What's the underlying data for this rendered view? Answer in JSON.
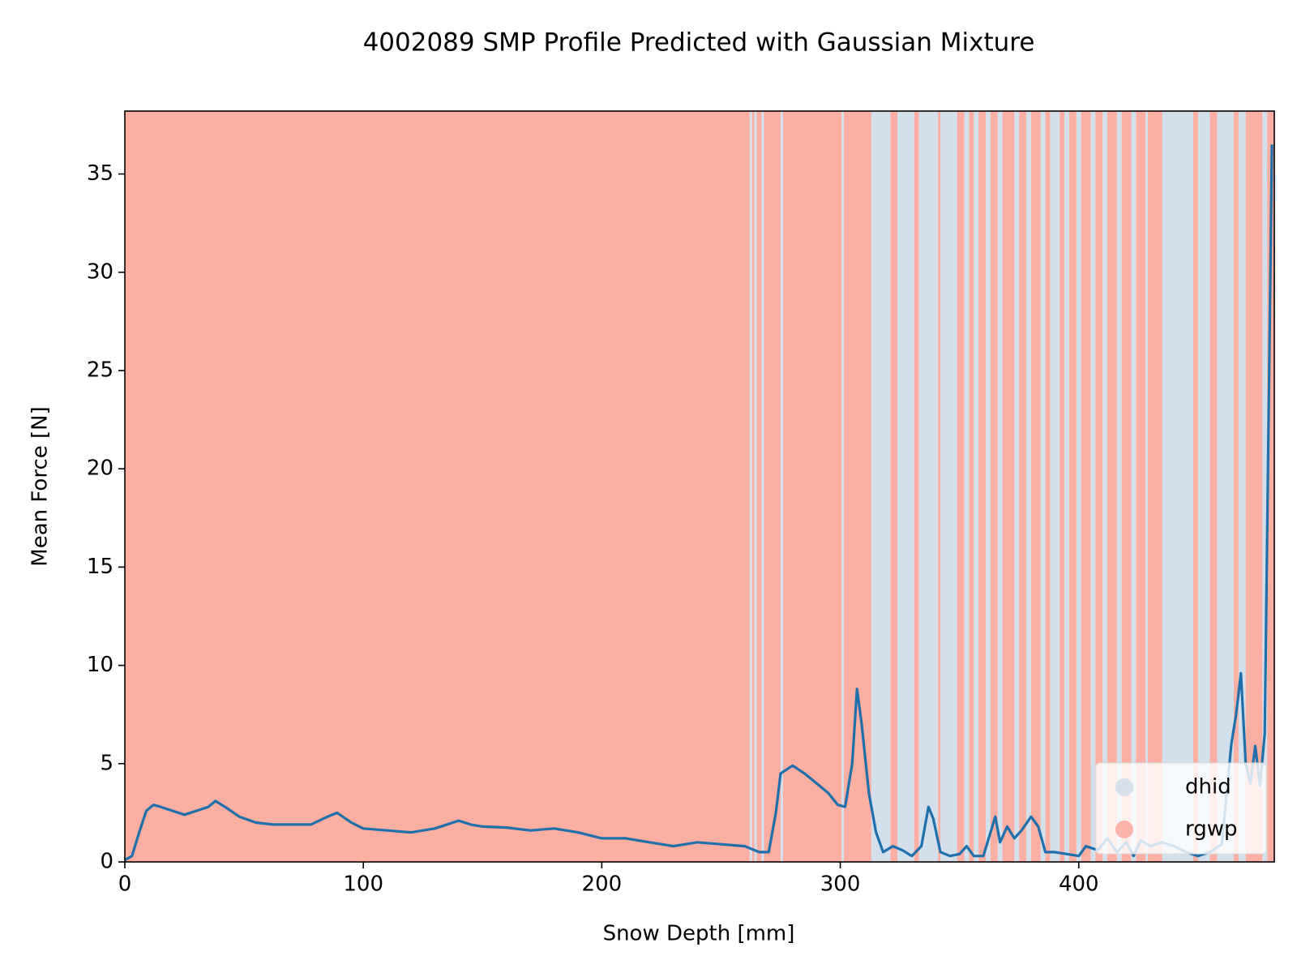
{
  "chart_data": {
    "type": "line",
    "title": "4002089 SMP Profile Predicted with Gaussian Mixture",
    "x_label": "Snow Depth [mm]",
    "y_label": "Mean Force [N]",
    "xlim": [
      0,
      482
    ],
    "ylim": [
      0,
      38.2
    ],
    "xticks": [
      0,
      100,
      200,
      300,
      400
    ],
    "yticks": [
      0,
      5,
      10,
      15,
      20,
      25,
      30,
      35
    ],
    "legend": "lower right",
    "classes": [
      {
        "name": "dhid",
        "color": "#d3dfeb",
        "spans": [
          [
            262,
            263
          ],
          [
            264,
            265
          ],
          [
            267,
            268
          ],
          [
            275,
            276
          ],
          [
            300.5,
            301.5
          ],
          [
            313,
            321
          ],
          [
            324,
            331
          ],
          [
            333,
            341
          ],
          [
            342,
            349
          ],
          [
            352,
            354
          ],
          [
            356,
            358
          ],
          [
            361,
            363
          ],
          [
            366,
            368
          ],
          [
            373,
            375
          ],
          [
            378,
            380
          ],
          [
            384,
            386
          ],
          [
            388,
            392
          ],
          [
            394,
            396
          ],
          [
            399,
            401
          ],
          [
            405,
            407
          ],
          [
            410,
            412
          ],
          [
            416,
            418
          ],
          [
            422,
            424
          ],
          [
            428,
            429
          ],
          [
            435,
            448
          ],
          [
            450,
            455
          ],
          [
            458,
            465
          ],
          [
            467,
            470
          ],
          [
            477,
            479
          ]
        ]
      },
      {
        "name": "rgwp",
        "color": "#fbaea2",
        "spans": [
          [
            0,
            262
          ],
          [
            263,
            264
          ],
          [
            265,
            267
          ],
          [
            268,
            275
          ],
          [
            276,
            300.5
          ],
          [
            301.5,
            313
          ],
          [
            321,
            324
          ],
          [
            331,
            333
          ],
          [
            341,
            342
          ],
          [
            349,
            352
          ],
          [
            354,
            356
          ],
          [
            358,
            361
          ],
          [
            363,
            366
          ],
          [
            368,
            373
          ],
          [
            375,
            378
          ],
          [
            380,
            384
          ],
          [
            386,
            388
          ],
          [
            392,
            394
          ],
          [
            396,
            399
          ],
          [
            401,
            405
          ],
          [
            407,
            410
          ],
          [
            412,
            416
          ],
          [
            418,
            422
          ],
          [
            424,
            428
          ],
          [
            429,
            435
          ],
          [
            448,
            450
          ],
          [
            455,
            458
          ],
          [
            465,
            467
          ],
          [
            470,
            477
          ],
          [
            479,
            482
          ]
        ]
      }
    ],
    "line_color": "#1f6fab",
    "x": [
      0,
      3,
      6,
      9,
      12,
      15,
      20,
      25,
      30,
      35,
      38,
      42,
      48,
      55,
      62,
      70,
      78,
      85,
      89,
      95,
      100,
      110,
      120,
      130,
      140,
      145,
      150,
      160,
      170,
      180,
      190,
      200,
      210,
      220,
      230,
      240,
      250,
      260,
      266,
      270,
      273,
      275,
      280,
      285,
      290,
      295,
      299,
      302,
      305,
      307,
      309,
      312,
      315,
      318,
      322,
      326,
      330,
      334,
      337,
      339,
      342,
      346,
      350,
      353,
      356,
      360,
      365,
      367,
      370,
      373,
      376,
      380,
      383,
      386,
      390,
      395,
      400,
      403,
      408,
      412,
      416,
      420,
      423,
      426,
      430,
      435,
      440,
      445,
      450,
      455,
      460,
      464,
      466,
      468,
      470,
      472,
      474,
      476,
      478,
      481
    ],
    "values": [
      0.1,
      0.3,
      1.5,
      2.6,
      2.9,
      2.8,
      2.6,
      2.4,
      2.6,
      2.8,
      3.1,
      2.8,
      2.3,
      2.0,
      1.9,
      1.9,
      1.9,
      2.3,
      2.5,
      2.0,
      1.7,
      1.6,
      1.5,
      1.7,
      2.1,
      1.9,
      1.8,
      1.75,
      1.6,
      1.7,
      1.5,
      1.2,
      1.2,
      1.0,
      0.8,
      1.0,
      0.9,
      0.8,
      0.5,
      0.5,
      2.5,
      4.5,
      4.9,
      4.5,
      4.0,
      3.5,
      2.9,
      2.8,
      5.0,
      8.8,
      7.0,
      3.5,
      1.5,
      0.5,
      0.8,
      0.6,
      0.3,
      0.8,
      2.8,
      2.2,
      0.5,
      0.3,
      0.4,
      0.8,
      0.3,
      0.3,
      2.3,
      1.0,
      1.8,
      1.2,
      1.6,
      2.3,
      1.8,
      0.5,
      0.5,
      0.4,
      0.3,
      0.8,
      0.6,
      1.2,
      0.5,
      1.0,
      0.3,
      1.1,
      0.8,
      1.0,
      0.8,
      0.5,
      0.3,
      0.5,
      0.9,
      6.0,
      7.5,
      9.6,
      5.0,
      4.0,
      5.9,
      3.9,
      6.5,
      36.5
    ]
  }
}
